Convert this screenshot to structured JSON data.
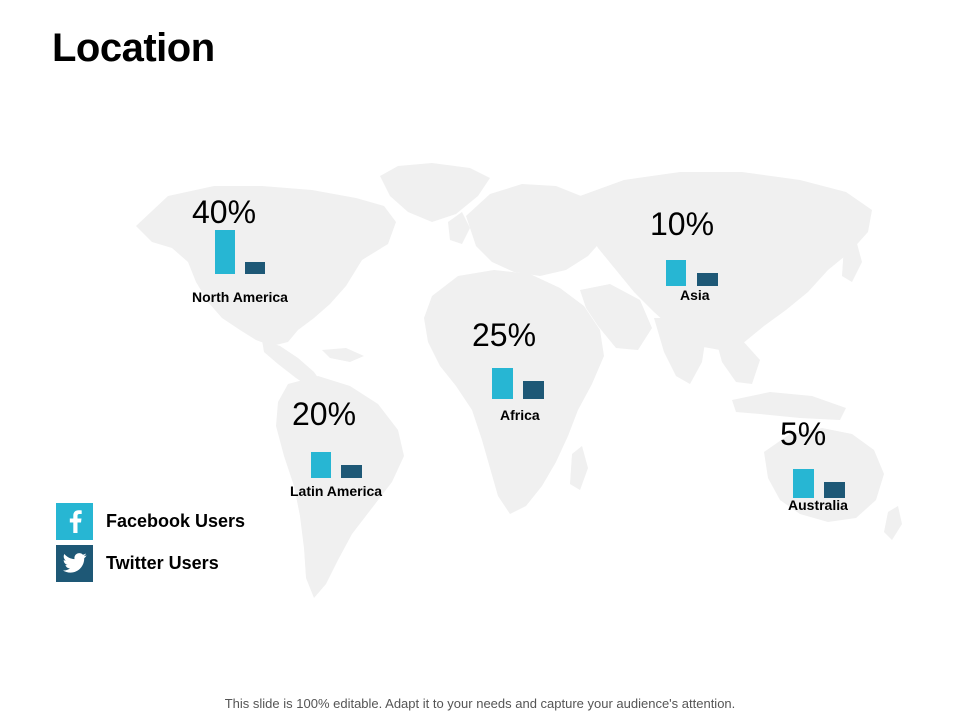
{
  "slide": {
    "title": "Location",
    "footer": "This slide is 100% editable. Adapt it to your needs and capture your audience's attention."
  },
  "colors": {
    "facebook": "#27b6d3",
    "twitter": "#1e5876",
    "map": "#f0f0f0"
  },
  "legend": [
    {
      "label": "Facebook Users",
      "icon": "facebook-icon",
      "color": "#27b6d3"
    },
    {
      "label": "Twitter Users",
      "icon": "twitter-icon",
      "color": "#1e5876"
    }
  ],
  "chart_data": {
    "type": "bar",
    "title": "Location",
    "categories": [
      "North America",
      "Asia",
      "Africa",
      "Latin America",
      "Australia"
    ],
    "percent_labels": [
      "40%",
      "10%",
      "25%",
      "20%",
      "5%"
    ],
    "values": [
      40,
      10,
      25,
      20,
      5
    ],
    "series": [
      {
        "name": "Facebook Users",
        "relative_values": [
          1.0,
          0.6,
          0.7,
          0.6,
          0.65
        ]
      },
      {
        "name": "Twitter Users",
        "relative_values": [
          0.27,
          0.3,
          0.4,
          0.3,
          0.37
        ]
      }
    ]
  }
}
